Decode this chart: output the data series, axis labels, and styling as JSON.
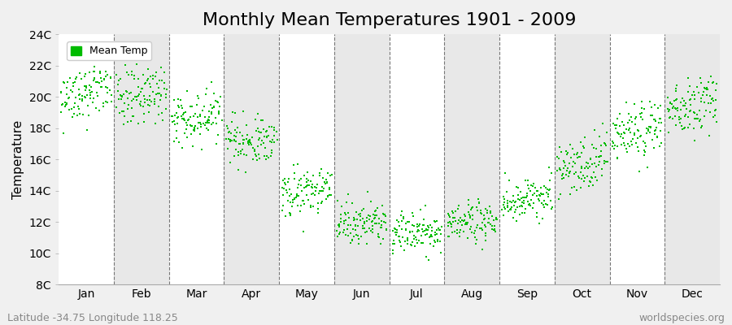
{
  "title": "Monthly Mean Temperatures 1901 - 2009",
  "ylabel": "Temperature",
  "subtitle_left": "Latitude -34.75 Longitude 118.25",
  "subtitle_right": "worldspecies.org",
  "legend_label": "Mean Temp",
  "dot_color": "#00BB00",
  "dot_size": 3,
  "bg_color": "#F0F0F0",
  "band_colors": [
    "#FFFFFF",
    "#E8E8E8"
  ],
  "ylim": [
    8,
    24
  ],
  "ytick_labels": [
    "8C",
    "10C",
    "12C",
    "14C",
    "16C",
    "18C",
    "20C",
    "22C",
    "24C"
  ],
  "ytick_values": [
    8,
    10,
    12,
    14,
    16,
    18,
    20,
    22,
    24
  ],
  "months": [
    "Jan",
    "Feb",
    "Mar",
    "Apr",
    "May",
    "Jun",
    "Jul",
    "Aug",
    "Sep",
    "Oct",
    "Nov",
    "Dec"
  ],
  "month_means": [
    20.0,
    19.8,
    18.5,
    17.0,
    13.8,
    11.8,
    11.2,
    11.8,
    13.2,
    15.5,
    17.5,
    19.2
  ],
  "month_stds": [
    0.9,
    0.9,
    0.85,
    0.75,
    0.75,
    0.65,
    0.65,
    0.65,
    0.7,
    0.85,
    0.9,
    0.9
  ],
  "month_trends": [
    0.005,
    0.004,
    0.004,
    0.004,
    0.004,
    0.003,
    0.003,
    0.003,
    0.004,
    0.005,
    0.005,
    0.005
  ],
  "n_years": 109,
  "seed": 42,
  "title_fontsize": 16,
  "axis_label_fontsize": 11,
  "tick_fontsize": 10,
  "subtitle_fontsize": 9,
  "grid_color": "#777777",
  "grid_linestyle": "--",
  "grid_linewidth": 0.8
}
